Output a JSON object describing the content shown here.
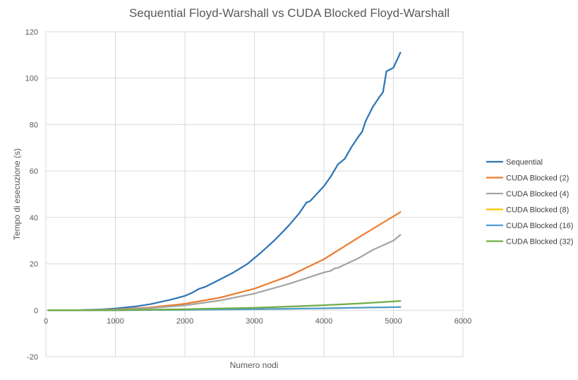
{
  "chart_data": {
    "type": "line",
    "title": "Sequential Floyd-Warshall vs CUDA Blocked Floyd-Warshall",
    "xlabel": "Numero nodi",
    "ylabel": "Tempo di esecuzione (s)",
    "xlim": [
      0,
      6000
    ],
    "ylim": [
      -20,
      120
    ],
    "xticks": [
      "0",
      "1000",
      "2000",
      "3000",
      "4000",
      "5000",
      "6000"
    ],
    "yticks": [
      "-20",
      "0",
      "20",
      "40",
      "60",
      "80",
      "100",
      "120"
    ],
    "grid": "vertical and horizontal major gridlines",
    "legend_position": "right",
    "series": [
      {
        "name": "Sequential",
        "color": "#2e75b6",
        "points": [
          [
            32,
            0.01
          ],
          [
            500,
            0.1
          ],
          [
            800,
            0.4
          ],
          [
            1000,
            0.8
          ],
          [
            1300,
            1.7
          ],
          [
            1500,
            2.6
          ],
          [
            1800,
            4.6
          ],
          [
            2000,
            6.2
          ],
          [
            2100,
            7.5
          ],
          [
            2200,
            9.2
          ],
          [
            2300,
            10.2
          ],
          [
            2500,
            13.2
          ],
          [
            2700,
            16.3
          ],
          [
            2900,
            20.0
          ],
          [
            3100,
            25.0
          ],
          [
            3300,
            30.5
          ],
          [
            3500,
            36.7
          ],
          [
            3650,
            42.0
          ],
          [
            3750,
            46.5
          ],
          [
            3800,
            47.0
          ],
          [
            4000,
            53.5
          ],
          [
            4100,
            57.7
          ],
          [
            4200,
            62.8
          ],
          [
            4300,
            65.3
          ],
          [
            4400,
            70.5
          ],
          [
            4500,
            75.0
          ],
          [
            4550,
            77.0
          ],
          [
            4600,
            81.5
          ],
          [
            4700,
            87.5
          ],
          [
            4800,
            92.0
          ],
          [
            4850,
            94.0
          ],
          [
            4900,
            103.0
          ],
          [
            5000,
            104.5
          ],
          [
            5100,
            111.0
          ]
        ]
      },
      {
        "name": "CUDA Blocked (2)",
        "color": "#ed7d31",
        "points": [
          [
            32,
            0.0
          ],
          [
            500,
            0.04
          ],
          [
            1000,
            0.35
          ],
          [
            1500,
            1.2
          ],
          [
            2000,
            2.8
          ],
          [
            2500,
            5.4
          ],
          [
            3000,
            9.3
          ],
          [
            3500,
            14.8
          ],
          [
            4000,
            22.0
          ],
          [
            4500,
            31.4
          ],
          [
            5100,
            42.3
          ]
        ]
      },
      {
        "name": "CUDA Blocked (4)",
        "color": "#a5a5a5",
        "points": [
          [
            32,
            0.0
          ],
          [
            500,
            0.03
          ],
          [
            1000,
            0.27
          ],
          [
            1500,
            0.9
          ],
          [
            2000,
            2.1
          ],
          [
            2500,
            4.2
          ],
          [
            3000,
            7.2
          ],
          [
            3500,
            11.4
          ],
          [
            4000,
            16.3
          ],
          [
            4100,
            17.0
          ],
          [
            4150,
            18.0
          ],
          [
            4200,
            18.3
          ],
          [
            4500,
            22.5
          ],
          [
            4700,
            26.0
          ],
          [
            5000,
            30.0
          ],
          [
            5100,
            32.5
          ]
        ]
      },
      {
        "name": "CUDA Blocked (8)",
        "color": "#ffc000",
        "points": [
          [
            32,
            0.0
          ],
          [
            1000,
            0.03
          ],
          [
            2000,
            0.2
          ],
          [
            3000,
            0.45
          ],
          [
            4000,
            0.85
          ],
          [
            5100,
            1.4
          ]
        ]
      },
      {
        "name": "CUDA Blocked (16)",
        "color": "#4b9fd5",
        "points": [
          [
            32,
            0.0
          ],
          [
            1000,
            0.03
          ],
          [
            2000,
            0.2
          ],
          [
            3000,
            0.45
          ],
          [
            4000,
            0.85
          ],
          [
            5100,
            1.4
          ]
        ]
      },
      {
        "name": "CUDA Blocked (32)",
        "color": "#70ad47",
        "points": [
          [
            32,
            0.0
          ],
          [
            500,
            0.01
          ],
          [
            1000,
            0.1
          ],
          [
            1500,
            0.25
          ],
          [
            2000,
            0.45
          ],
          [
            2500,
            0.75
          ],
          [
            3000,
            1.1
          ],
          [
            3500,
            1.6
          ],
          [
            4000,
            2.2
          ],
          [
            4500,
            2.9
          ],
          [
            5100,
            4.0
          ]
        ]
      }
    ]
  }
}
